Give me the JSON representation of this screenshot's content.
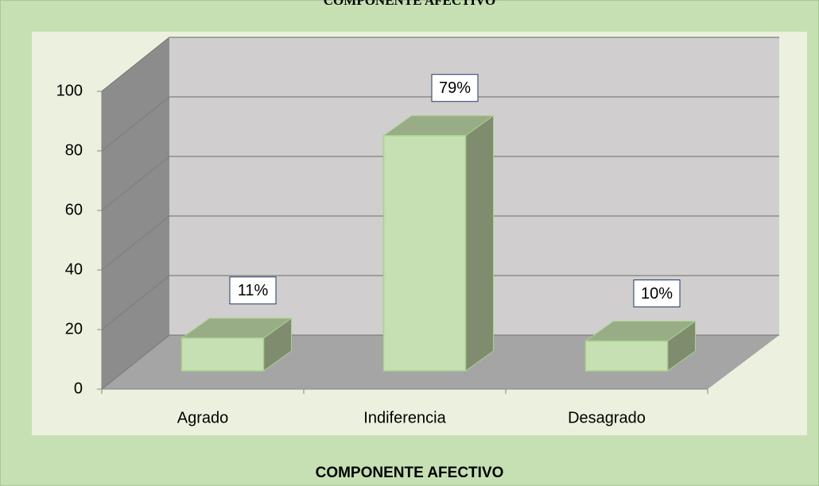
{
  "chart_data": {
    "type": "bar",
    "title": "COMPONENTE AFECTIVO",
    "xlabel": "COMPONENTE AFECTIVO",
    "categories": [
      "Agrado",
      "Indiferencia",
      "Desagrado"
    ],
    "values": [
      11,
      79,
      10
    ],
    "value_labels": [
      "11%",
      "79%",
      "10%"
    ],
    "color": "#c6e0b4",
    "ylim": [
      0,
      100
    ],
    "yticks": [
      0,
      20,
      40,
      60,
      80,
      100
    ],
    "grid": true
  }
}
